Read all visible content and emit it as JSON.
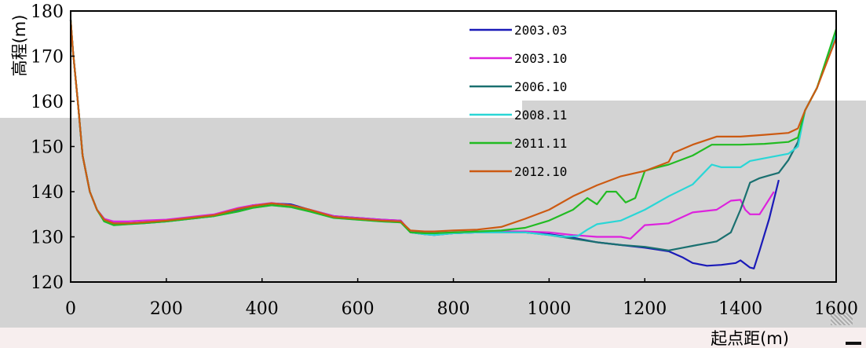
{
  "chart_data": {
    "type": "line",
    "xlabel": "起点距(m)",
    "ylabel": "高程(m)",
    "xlim": [
      0,
      1600
    ],
    "ylim": [
      120,
      180
    ],
    "x_ticks": [
      0,
      200,
      400,
      600,
      800,
      1000,
      1200,
      1400,
      1600
    ],
    "y_ticks": [
      120,
      130,
      140,
      150,
      160,
      170,
      180
    ],
    "grid": false,
    "legend_position": "top-right-inside",
    "series": [
      {
        "name": "2003.03",
        "color": "#1a1ab8",
        "points": [
          [
            0,
            178
          ],
          [
            5,
            171
          ],
          [
            15,
            160
          ],
          [
            25,
            148
          ],
          [
            40,
            140
          ],
          [
            55,
            136
          ],
          [
            70,
            134
          ],
          [
            90,
            133
          ],
          [
            120,
            133
          ],
          [
            150,
            133.2
          ],
          [
            200,
            133.6
          ],
          [
            250,
            134.2
          ],
          [
            300,
            134.8
          ],
          [
            350,
            136
          ],
          [
            380,
            137
          ],
          [
            420,
            137.4
          ],
          [
            460,
            137.2
          ],
          [
            500,
            136
          ],
          [
            550,
            134.6
          ],
          [
            600,
            134.2
          ],
          [
            650,
            133.8
          ],
          [
            690,
            133.6
          ],
          [
            710,
            131
          ],
          [
            740,
            130.6
          ],
          [
            760,
            130.4
          ],
          [
            800,
            130.8
          ],
          [
            850,
            131
          ],
          [
            900,
            131
          ],
          [
            950,
            131
          ],
          [
            1000,
            130.6
          ],
          [
            1050,
            129.8
          ],
          [
            1100,
            128.8
          ],
          [
            1150,
            128.2
          ],
          [
            1200,
            127.6
          ],
          [
            1250,
            126.8
          ],
          [
            1280,
            125.4
          ],
          [
            1300,
            124.2
          ],
          [
            1330,
            123.6
          ],
          [
            1360,
            123.8
          ],
          [
            1390,
            124.2
          ],
          [
            1400,
            124.8
          ],
          [
            1420,
            123.2
          ],
          [
            1428,
            123
          ],
          [
            1440,
            127
          ],
          [
            1460,
            134
          ],
          [
            1480,
            142.6
          ]
        ]
      },
      {
        "name": "2003.10",
        "color": "#dd22dd",
        "points": [
          [
            0,
            178
          ],
          [
            5,
            171
          ],
          [
            15,
            160
          ],
          [
            25,
            148
          ],
          [
            40,
            140
          ],
          [
            55,
            136
          ],
          [
            70,
            134
          ],
          [
            90,
            133.4
          ],
          [
            120,
            133.4
          ],
          [
            150,
            133.6
          ],
          [
            200,
            133.8
          ],
          [
            250,
            134.4
          ],
          [
            300,
            135
          ],
          [
            350,
            136.4
          ],
          [
            380,
            137
          ],
          [
            420,
            137.5
          ],
          [
            460,
            137
          ],
          [
            500,
            136
          ],
          [
            550,
            134.6
          ],
          [
            600,
            134.2
          ],
          [
            650,
            133.8
          ],
          [
            690,
            133.6
          ],
          [
            710,
            131.2
          ],
          [
            740,
            131
          ],
          [
            760,
            130.8
          ],
          [
            800,
            131
          ],
          [
            850,
            131.2
          ],
          [
            900,
            131.2
          ],
          [
            950,
            131.2
          ],
          [
            1000,
            131
          ],
          [
            1050,
            130.4
          ],
          [
            1100,
            130
          ],
          [
            1150,
            130
          ],
          [
            1170,
            129.6
          ],
          [
            1200,
            132.6
          ],
          [
            1250,
            133
          ],
          [
            1300,
            135.4
          ],
          [
            1350,
            136
          ],
          [
            1380,
            138
          ],
          [
            1400,
            138.2
          ],
          [
            1410,
            136
          ],
          [
            1420,
            135
          ],
          [
            1440,
            135
          ],
          [
            1470,
            140
          ]
        ]
      },
      {
        "name": "2006.10",
        "color": "#1a7070",
        "points": [
          [
            0,
            178
          ],
          [
            5,
            171
          ],
          [
            15,
            160
          ],
          [
            25,
            148
          ],
          [
            40,
            140
          ],
          [
            55,
            136
          ],
          [
            70,
            133.6
          ],
          [
            90,
            132.8
          ],
          [
            120,
            133
          ],
          [
            150,
            133
          ],
          [
            200,
            133.4
          ],
          [
            250,
            134
          ],
          [
            300,
            134.6
          ],
          [
            350,
            136
          ],
          [
            380,
            136.6
          ],
          [
            420,
            137.2
          ],
          [
            460,
            136.8
          ],
          [
            500,
            135.8
          ],
          [
            550,
            134.4
          ],
          [
            600,
            134
          ],
          [
            650,
            133.6
          ],
          [
            690,
            133.4
          ],
          [
            710,
            131
          ],
          [
            740,
            130.8
          ],
          [
            760,
            130.6
          ],
          [
            800,
            130.8
          ],
          [
            850,
            131
          ],
          [
            900,
            131
          ],
          [
            950,
            131
          ],
          [
            1000,
            130.4
          ],
          [
            1050,
            129.6
          ],
          [
            1100,
            128.8
          ],
          [
            1150,
            128.2
          ],
          [
            1200,
            127.8
          ],
          [
            1250,
            127
          ],
          [
            1280,
            127.6
          ],
          [
            1300,
            128
          ],
          [
            1350,
            129
          ],
          [
            1380,
            131
          ],
          [
            1400,
            136
          ],
          [
            1420,
            142
          ],
          [
            1440,
            143
          ],
          [
            1460,
            143.6
          ],
          [
            1480,
            144.2
          ],
          [
            1500,
            147
          ],
          [
            1520,
            151
          ],
          [
            1535,
            158
          ],
          [
            1560,
            163
          ],
          [
            1600,
            175
          ]
        ]
      },
      {
        "name": "2008.11",
        "color": "#2ad6d6",
        "points": [
          [
            0,
            178
          ],
          [
            5,
            171
          ],
          [
            15,
            160
          ],
          [
            25,
            148
          ],
          [
            40,
            140
          ],
          [
            55,
            136
          ],
          [
            70,
            133.4
          ],
          [
            90,
            132.6
          ],
          [
            120,
            132.8
          ],
          [
            150,
            133
          ],
          [
            200,
            133.4
          ],
          [
            250,
            134
          ],
          [
            300,
            134.6
          ],
          [
            350,
            135.6
          ],
          [
            380,
            136.4
          ],
          [
            420,
            137
          ],
          [
            460,
            136.6
          ],
          [
            500,
            135.6
          ],
          [
            550,
            134.2
          ],
          [
            600,
            133.8
          ],
          [
            650,
            133.4
          ],
          [
            690,
            133.2
          ],
          [
            710,
            131
          ],
          [
            740,
            130.6
          ],
          [
            760,
            130.4
          ],
          [
            800,
            130.8
          ],
          [
            850,
            131
          ],
          [
            900,
            131
          ],
          [
            950,
            131
          ],
          [
            1000,
            130.4
          ],
          [
            1030,
            130
          ],
          [
            1060,
            130.2
          ],
          [
            1080,
            131.6
          ],
          [
            1100,
            132.8
          ],
          [
            1150,
            133.6
          ],
          [
            1200,
            136
          ],
          [
            1250,
            139
          ],
          [
            1300,
            141.6
          ],
          [
            1340,
            146
          ],
          [
            1360,
            145.4
          ],
          [
            1400,
            145.4
          ],
          [
            1420,
            146.8
          ],
          [
            1460,
            147.6
          ],
          [
            1500,
            148.4
          ],
          [
            1520,
            150
          ],
          [
            1535,
            158
          ],
          [
            1560,
            163
          ],
          [
            1600,
            175
          ]
        ]
      },
      {
        "name": "2011.11",
        "color": "#22bb22",
        "points": [
          [
            0,
            178
          ],
          [
            5,
            171
          ],
          [
            15,
            160
          ],
          [
            25,
            148
          ],
          [
            40,
            140
          ],
          [
            55,
            136
          ],
          [
            70,
            133.4
          ],
          [
            90,
            132.6
          ],
          [
            120,
            132.8
          ],
          [
            150,
            133
          ],
          [
            200,
            133.4
          ],
          [
            250,
            134
          ],
          [
            300,
            134.6
          ],
          [
            350,
            135.6
          ],
          [
            380,
            136.4
          ],
          [
            420,
            137
          ],
          [
            460,
            136.6
          ],
          [
            500,
            135.6
          ],
          [
            550,
            134.2
          ],
          [
            600,
            133.8
          ],
          [
            650,
            133.4
          ],
          [
            690,
            133.2
          ],
          [
            710,
            131
          ],
          [
            740,
            130.8
          ],
          [
            760,
            130.8
          ],
          [
            800,
            131
          ],
          [
            850,
            131.2
          ],
          [
            900,
            131.4
          ],
          [
            950,
            132
          ],
          [
            1000,
            133.6
          ],
          [
            1050,
            136
          ],
          [
            1080,
            138.6
          ],
          [
            1100,
            137.2
          ],
          [
            1120,
            140
          ],
          [
            1140,
            140
          ],
          [
            1160,
            137.6
          ],
          [
            1180,
            138.6
          ],
          [
            1200,
            144.6
          ],
          [
            1220,
            145.2
          ],
          [
            1250,
            146
          ],
          [
            1300,
            148
          ],
          [
            1340,
            150.4
          ],
          [
            1400,
            150.4
          ],
          [
            1450,
            150.6
          ],
          [
            1500,
            151
          ],
          [
            1520,
            152
          ],
          [
            1535,
            158
          ],
          [
            1560,
            163
          ],
          [
            1600,
            176
          ]
        ]
      },
      {
        "name": "2012.10",
        "color": "#cc5a12",
        "points": [
          [
            0,
            178
          ],
          [
            5,
            171
          ],
          [
            15,
            160
          ],
          [
            25,
            148
          ],
          [
            40,
            140
          ],
          [
            55,
            136
          ],
          [
            70,
            133.8
          ],
          [
            90,
            133
          ],
          [
            120,
            133
          ],
          [
            150,
            133.2
          ],
          [
            200,
            133.6
          ],
          [
            250,
            134.2
          ],
          [
            300,
            134.8
          ],
          [
            350,
            136.2
          ],
          [
            380,
            136.8
          ],
          [
            420,
            137.4
          ],
          [
            460,
            137
          ],
          [
            500,
            136
          ],
          [
            550,
            134.4
          ],
          [
            600,
            134
          ],
          [
            650,
            133.6
          ],
          [
            690,
            133.4
          ],
          [
            710,
            131.4
          ],
          [
            740,
            131.2
          ],
          [
            760,
            131.2
          ],
          [
            800,
            131.4
          ],
          [
            850,
            131.6
          ],
          [
            900,
            132.2
          ],
          [
            950,
            134
          ],
          [
            1000,
            136
          ],
          [
            1050,
            139
          ],
          [
            1100,
            141.4
          ],
          [
            1150,
            143.4
          ],
          [
            1200,
            144.6
          ],
          [
            1250,
            146.6
          ],
          [
            1260,
            148.6
          ],
          [
            1300,
            150.4
          ],
          [
            1350,
            152.2
          ],
          [
            1400,
            152.2
          ],
          [
            1450,
            152.6
          ],
          [
            1500,
            153
          ],
          [
            1520,
            154
          ],
          [
            1535,
            158
          ],
          [
            1560,
            163
          ],
          [
            1600,
            174
          ]
        ]
      }
    ]
  }
}
